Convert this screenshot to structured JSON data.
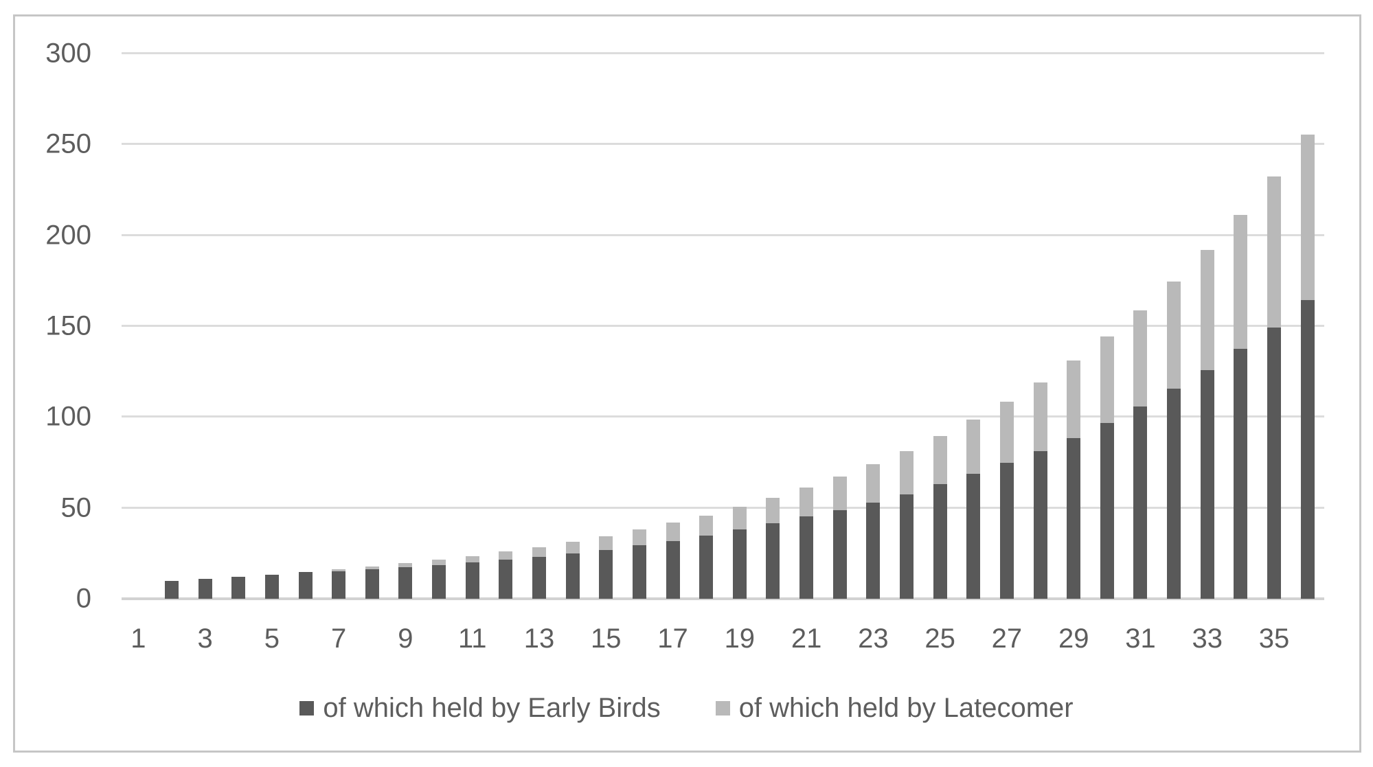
{
  "chart_data": {
    "type": "bar",
    "stacked": true,
    "title": "",
    "xlabel": "",
    "ylabel": "",
    "categories": [
      1,
      2,
      3,
      4,
      5,
      6,
      7,
      8,
      9,
      10,
      11,
      12,
      13,
      14,
      15,
      16,
      17,
      18,
      19,
      20,
      21,
      22,
      23,
      24,
      25,
      26,
      27,
      28,
      29,
      30,
      31,
      32,
      33,
      34,
      35,
      36
    ],
    "x_tick_labels_shown": [
      "1",
      "3",
      "5",
      "7",
      "9",
      "11",
      "13",
      "15",
      "17",
      "19",
      "21",
      "23",
      "25",
      "27",
      "29",
      "31",
      "33",
      "35"
    ],
    "y_ticks": [
      0,
      50,
      100,
      150,
      200,
      250,
      300
    ],
    "ylim": [
      0,
      300
    ],
    "grid": true,
    "legend_position": "bottom",
    "series": [
      {
        "name": "of which held by Early Birds",
        "color": "#595959",
        "values": [
          0,
          10,
          11,
          12.1,
          13.3,
          14.6,
          15.0,
          16.1,
          17.2,
          18.5,
          19.9,
          21.4,
          23.1,
          25.0,
          27.0,
          29.3,
          31.9,
          34.8,
          38.0,
          41.5,
          45.2,
          48.7,
          52.9,
          57.6,
          63.0,
          68.7,
          74.9,
          81.3,
          88.6,
          96.7,
          105.8,
          115.7,
          125.9,
          137.6,
          149.4,
          164.3
        ]
      },
      {
        "name": "of which held by Latecomer",
        "color": "#b9b9b9",
        "values": [
          0,
          0,
          0,
          0,
          0,
          0,
          1.1,
          1.6,
          2.3,
          2.9,
          3.7,
          4.5,
          5.4,
          6.4,
          7.5,
          8.7,
          9.9,
          11.1,
          12.5,
          14.1,
          16.0,
          18.6,
          21.1,
          23.8,
          26.5,
          29.8,
          33.4,
          37.9,
          42.5,
          47.5,
          52.8,
          58.8,
          66.0,
          73.5,
          82.9,
          91.2
        ]
      }
    ]
  },
  "style": {
    "gridline_color": "#dcdcdc",
    "axis_line_color": "#d2d2d2",
    "tick_text_color": "#5d5d5d",
    "frame_border_color": "#c6c6c6",
    "background_color": "#ffffff"
  }
}
